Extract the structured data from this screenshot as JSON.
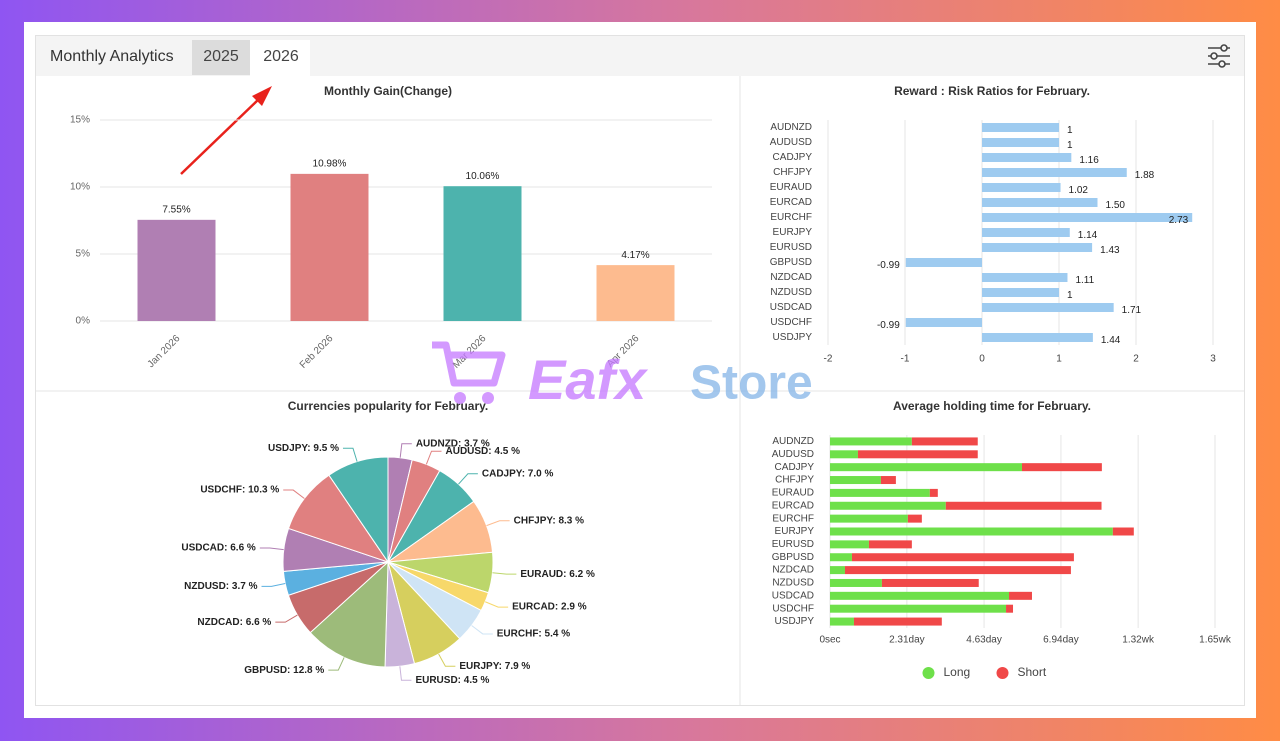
{
  "header": {
    "title": "Monthly Analytics",
    "tabs": [
      "2025",
      "2026"
    ]
  },
  "watermark": {
    "brand": "Eafx",
    "suffix": "Store"
  },
  "chart_data": [
    {
      "type": "bar",
      "title": "Monthly Gain(Change)",
      "categories": [
        "Jan 2026",
        "Feb 2026",
        "Mar 2026",
        "Apr 2026"
      ],
      "values": [
        7.55,
        10.98,
        10.06,
        4.17
      ],
      "value_labels": [
        "7.55%",
        "10.98%",
        "10.06%",
        "4.17%"
      ],
      "colors": [
        "#b07fb3",
        "#e08080",
        "#4db3ad",
        "#fdbb8f"
      ],
      "ylim": [
        0,
        15
      ],
      "yticks": [
        {
          "value": 0,
          "label": "0%"
        },
        {
          "value": 5,
          "label": "5%"
        },
        {
          "value": 10,
          "label": "10%"
        },
        {
          "value": 15,
          "label": "15%"
        }
      ],
      "grid": true
    },
    {
      "type": "hbar",
      "title": "Reward : Risk Ratios for February.",
      "categories": [
        "AUDNZD",
        "AUDUSD",
        "CADJPY",
        "CHFJPY",
        "EURAUD",
        "EURCAD",
        "EURCHF",
        "EURJPY",
        "EURUSD",
        "GBPUSD",
        "NZDCAD",
        "NZDUSD",
        "USDCAD",
        "USDCHF",
        "USDJPY"
      ],
      "values": [
        1,
        1,
        1.16,
        1.88,
        1.02,
        1.5,
        2.73,
        1.14,
        1.43,
        -0.99,
        1.11,
        1,
        1.71,
        -0.99,
        1.44
      ],
      "value_labels": [
        "1",
        "1",
        "1.16",
        "1.88",
        "1.02",
        "1.50",
        "2.73",
        "1.14",
        "1.43",
        "-0.99",
        "1.11",
        "1",
        "1.71",
        "-0.99",
        "1.44"
      ],
      "color": "#9ecbf0",
      "xlim": [
        -2,
        3
      ],
      "xticks": [
        -2,
        -1,
        0,
        1,
        2,
        3
      ],
      "grid": true
    },
    {
      "type": "pie",
      "title": "Currencies popularity for February.",
      "values": [
        3.7,
        4.5,
        7.0,
        8.3,
        6.2,
        2.9,
        5.4,
        7.9,
        4.5,
        12.8,
        6.6,
        3.7,
        6.6,
        10.3,
        9.5
      ],
      "value_labels": [
        "AUDNZD: 3.7 %",
        "AUDUSD: 4.5 %",
        "CADJPY: 7.0 %",
        "CHFJPY: 8.3 %",
        "EURAUD: 6.2 %",
        "EURCAD: 2.9 %",
        "EURCHF: 5.4 %",
        "EURJPY: 7.9 %",
        "EURUSD: 4.5 %",
        "GBPUSD: 12.8 %",
        "NZDCAD: 6.6 %",
        "NZDUSD: 3.7 %",
        "USDCAD: 6.6 %",
        "USDCHF: 10.3 %",
        "USDJPY: 9.5 %"
      ],
      "colors": [
        "#b07fb3",
        "#e08080",
        "#4db3ad",
        "#fdbb8f",
        "#bcd66b",
        "#f7d86a",
        "#cfe4f5",
        "#d6cf5e",
        "#c9b3da",
        "#9dbb7a",
        "#c76b6b",
        "#5bb0e0",
        "#b07fb3",
        "#e08080",
        "#4db3ad"
      ]
    },
    {
      "type": "stacked_hbar",
      "title": "Average holding time for February.",
      "categories": [
        "AUDNZD",
        "AUDUSD",
        "CADJPY",
        "CHFJPY",
        "EURAUD",
        "EURCAD",
        "EURCHF",
        "EURJPY",
        "EURUSD",
        "GBPUSD",
        "NZDCAD",
        "NZDUSD",
        "USDCAD",
        "USDCHF",
        "USDJPY"
      ],
      "series": [
        {
          "name": "Long",
          "color": "#6ee04a",
          "values": [
            2.46,
            0.84,
            5.77,
            1.53,
            3.0,
            3.48,
            2.34,
            8.5,
            1.17,
            0.66,
            0.45,
            1.56,
            5.38,
            5.29,
            0.72
          ]
        },
        {
          "name": "Short",
          "color": "#f04848",
          "values": [
            1.98,
            3.6,
            2.4,
            0.45,
            0.24,
            4.68,
            0.42,
            0.63,
            1.29,
            6.67,
            6.79,
            2.91,
            0.69,
            0.21,
            2.64
          ]
        }
      ],
      "xlim": [
        0,
        11.57
      ],
      "xticks": [
        {
          "value": 0,
          "label": "0sec"
        },
        {
          "value": 2.31,
          "label": "2.31day"
        },
        {
          "value": 4.63,
          "label": "4.63day"
        },
        {
          "value": 6.94,
          "label": "6.94day"
        },
        {
          "value": 9.26,
          "label": "1.32wk"
        },
        {
          "value": 11.57,
          "label": "1.65wk"
        }
      ],
      "grid": true,
      "legend": "bottom"
    }
  ]
}
